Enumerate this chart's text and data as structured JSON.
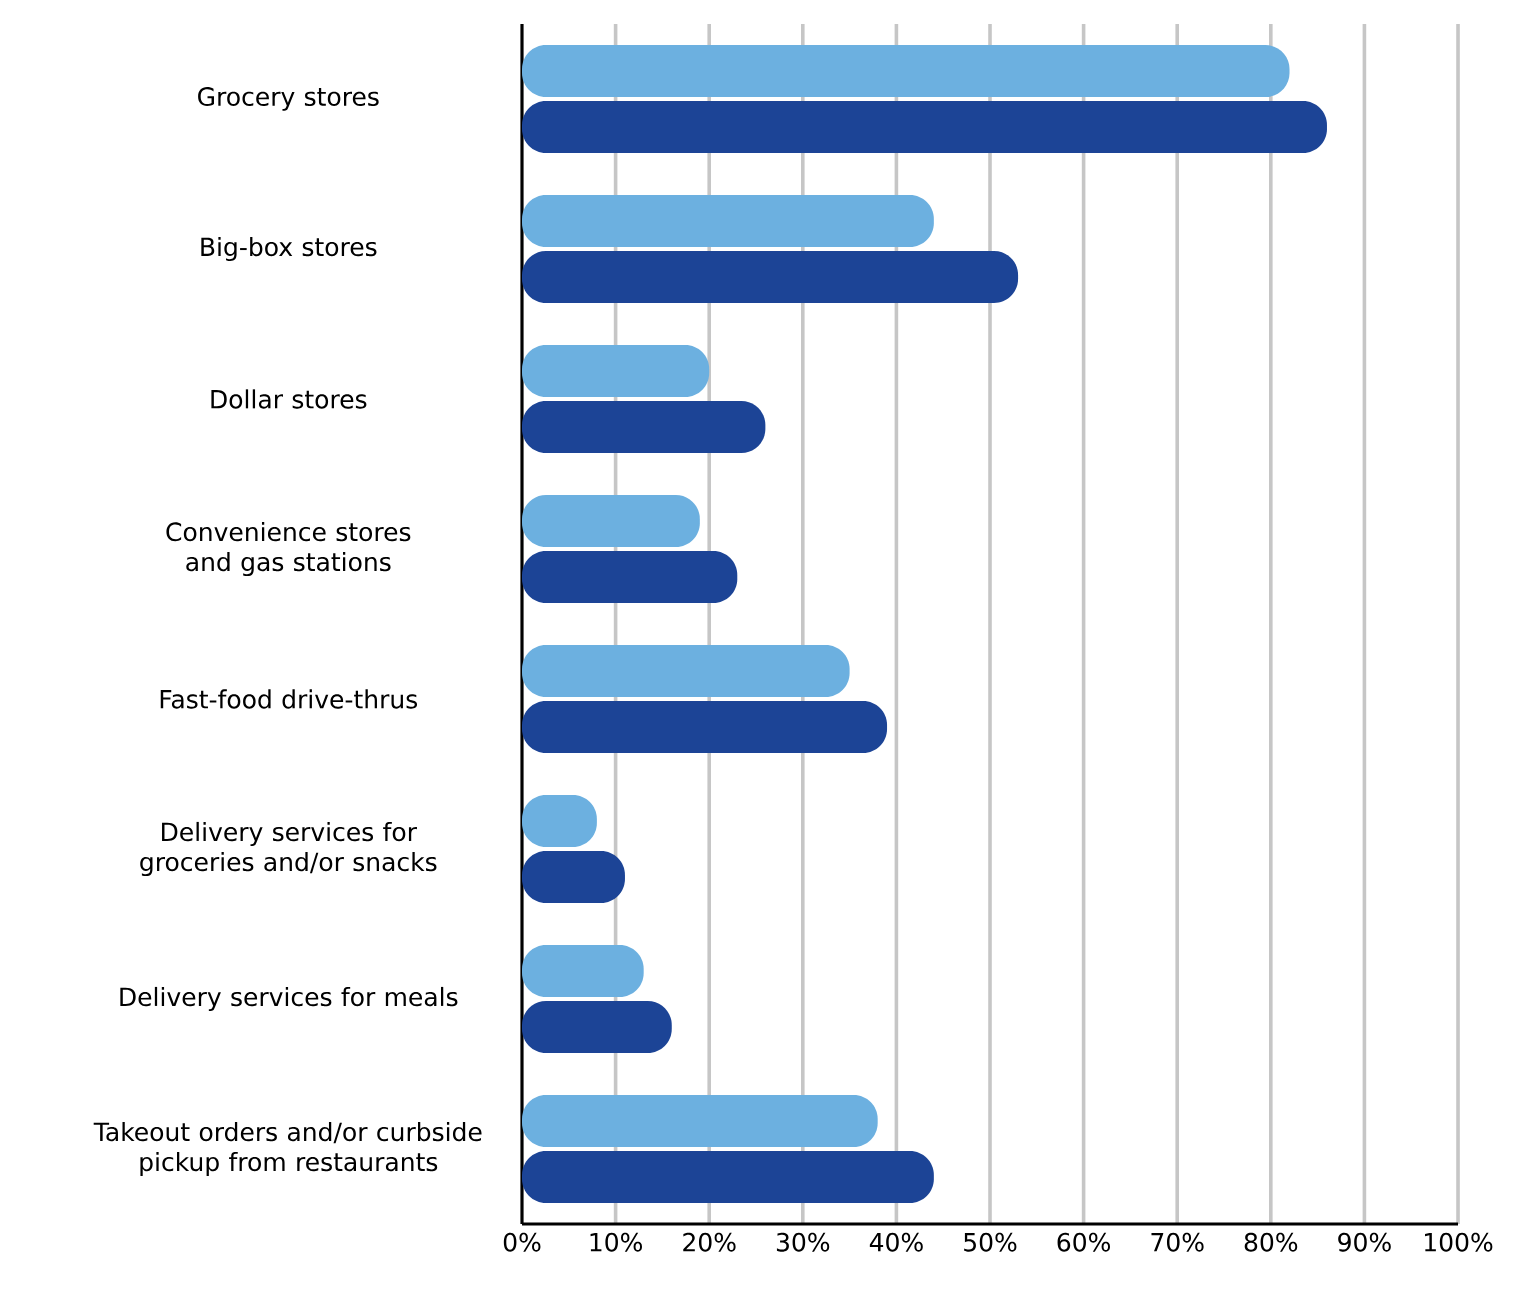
{
  "chart_data": {
    "type": "bar",
    "orientation": "horizontal",
    "grid": "x",
    "categories": [
      "Grocery stores",
      "Big-box stores",
      "Dollar stores",
      "Convenience stores and gas stations",
      "Fast-food drive-thrus",
      "Delivery services for groceries and/or snacks",
      "Delivery services for meals",
      "Takeout orders and/or curbside pickup from restaurants"
    ],
    "series": [
      {
        "color": "#6cb0e0",
        "values": [
          82,
          44,
          20,
          19,
          35,
          8,
          13,
          38
        ]
      },
      {
        "color": "#1c4496",
        "values": [
          86,
          53,
          26,
          23,
          39,
          11,
          16,
          44
        ]
      }
    ],
    "xlim": [
      0,
      100
    ],
    "xticks": [
      {
        "value": 0,
        "label": "0%"
      },
      {
        "value": 10,
        "label": "10%"
      },
      {
        "value": 20,
        "label": "20%"
      },
      {
        "value": 30,
        "label": "30%"
      },
      {
        "value": 40,
        "label": "40%"
      },
      {
        "value": 50,
        "label": "50%"
      },
      {
        "value": 60,
        "label": "60%"
      },
      {
        "value": 70,
        "label": "70%"
      },
      {
        "value": 80,
        "label": "80%"
      },
      {
        "value": 90,
        "label": "90%"
      },
      {
        "value": 100,
        "label": "100%"
      }
    ]
  }
}
